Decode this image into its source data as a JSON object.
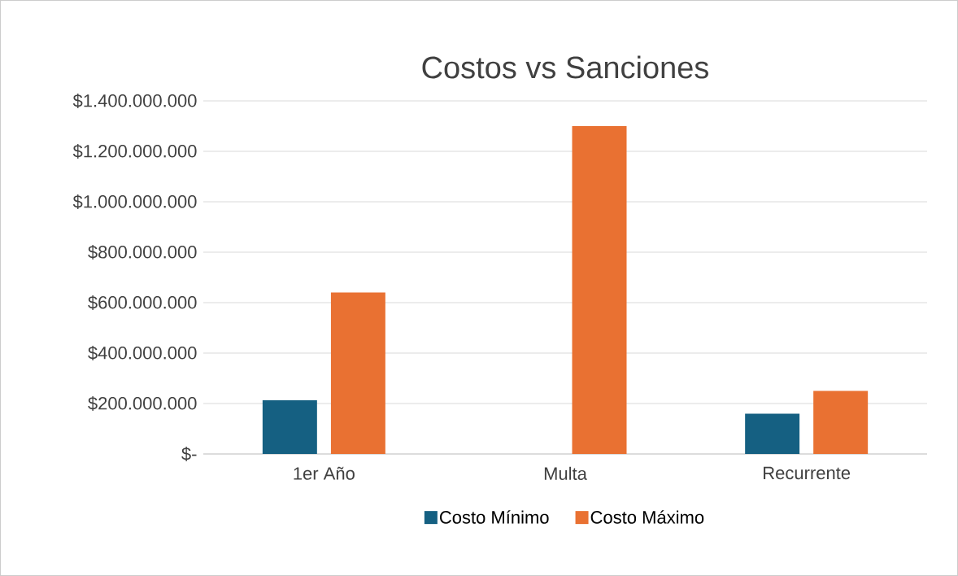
{
  "chart_data": {
    "type": "bar",
    "title": "Costos vs Sanciones",
    "categories": [
      "1er Año",
      "Multa",
      "Recurrente"
    ],
    "series": [
      {
        "name": "Costo Mínimo",
        "color": "#156082",
        "values": [
          213000000,
          0,
          160000000
        ]
      },
      {
        "name": "Costo Máximo",
        "color": "#e97132",
        "values": [
          640000000,
          1300000000,
          250000000
        ]
      }
    ],
    "ylim": [
      0,
      1400000000
    ],
    "yticks": [
      {
        "value": 0,
        "label": "$-"
      },
      {
        "value": 200000000,
        "label": "$200.000.000"
      },
      {
        "value": 400000000,
        "label": "$400.000.000"
      },
      {
        "value": 600000000,
        "label": "$600.000.000"
      },
      {
        "value": 800000000,
        "label": "$800.000.000"
      },
      {
        "value": 1000000000,
        "label": "$1.000.000.000"
      },
      {
        "value": 1200000000,
        "label": "$1.200.000.000"
      },
      {
        "value": 1400000000,
        "label": "$1.400.000.000"
      }
    ],
    "grid": "y",
    "legend": "bottom"
  }
}
